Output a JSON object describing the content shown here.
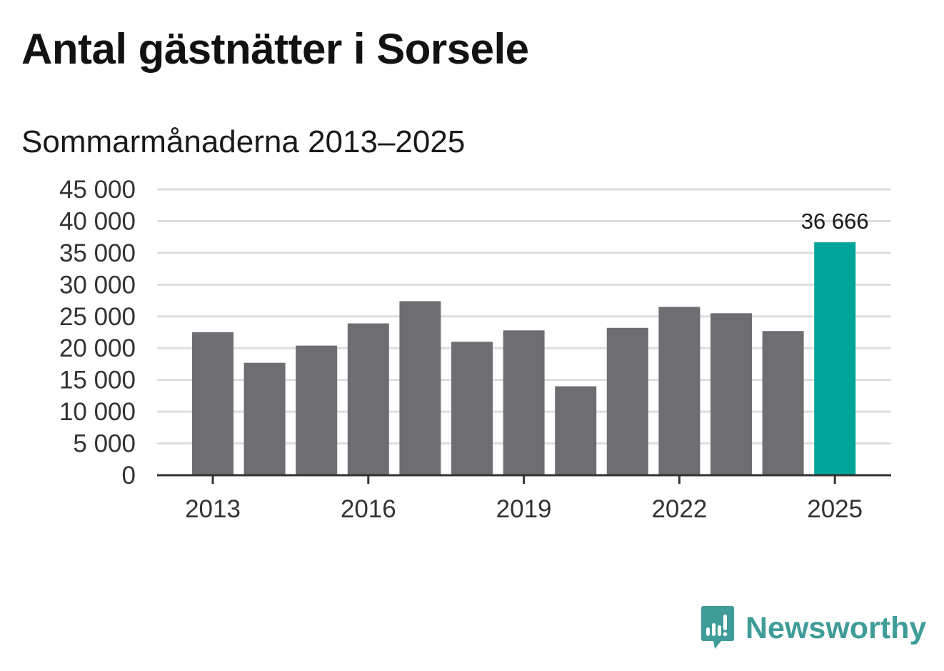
{
  "title": "Antal gästnätter i Sorsele",
  "subtitle": "Sommarmånaderna 2013–2025",
  "brand": {
    "name": "Newsworthy",
    "color": "#3f9c98",
    "icon": "newsworthy-logo-icon"
  },
  "colors": {
    "bar": "#6e6d72",
    "highlight": "#00a59a",
    "grid": "#dddddd",
    "axis": "#333333"
  },
  "chart_data": {
    "type": "bar",
    "categories": [
      "2013",
      "2014",
      "2015",
      "2016",
      "2017",
      "2018",
      "2019",
      "2020",
      "2021",
      "2022",
      "2023",
      "2024",
      "2025"
    ],
    "values": [
      22500,
      17700,
      20400,
      23900,
      27400,
      21000,
      22800,
      14000,
      23200,
      26500,
      25500,
      22700,
      36666
    ],
    "highlight_index": 12,
    "data_labels": [
      {
        "index": 12,
        "text": "36 666"
      }
    ],
    "y_ticks": [
      0,
      5000,
      10000,
      15000,
      20000,
      25000,
      30000,
      35000,
      40000,
      45000
    ],
    "y_tick_labels": [
      "0",
      "5 000",
      "10 000",
      "15 000",
      "20 000",
      "25 000",
      "30 000",
      "35 000",
      "40 000",
      "45 000"
    ],
    "x_tick_labels": [
      "2013",
      "2016",
      "2019",
      "2022",
      "2025"
    ],
    "x_tick_indices": [
      0,
      3,
      6,
      9,
      12
    ],
    "ylim": [
      0,
      45000
    ],
    "grid": true,
    "legend": "none"
  }
}
